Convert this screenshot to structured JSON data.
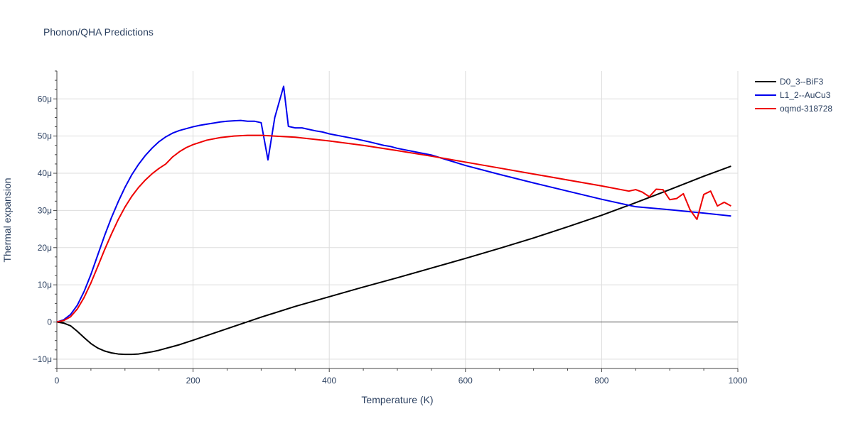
{
  "chart_data": {
    "type": "line",
    "title": "Phonon/QHA Predictions",
    "xlabel": "Temperature (K)",
    "ylabel": "Thermal expansion",
    "xlim": [
      0,
      1000
    ],
    "ylim": [
      -1.25e-05,
      6.75e-05
    ],
    "x_ticks": [
      0,
      200,
      400,
      600,
      800,
      1000
    ],
    "x_tick_labels": [
      "0",
      "200",
      "400",
      "600",
      "800",
      "1000"
    ],
    "y_ticks": [
      -1e-05,
      0,
      1e-05,
      2e-05,
      3e-05,
      4e-05,
      5e-05,
      6e-05
    ],
    "y_tick_labels": [
      "−10μ",
      "0",
      "10μ",
      "20μ",
      "30μ",
      "40μ",
      "50μ",
      "60μ"
    ],
    "grid": true,
    "legend_position": "top-right",
    "series": [
      {
        "name": "D0_3--BiF3",
        "color": "#000000",
        "x": [
          0,
          10,
          20,
          30,
          40,
          50,
          60,
          70,
          80,
          90,
          100,
          110,
          120,
          130,
          140,
          150,
          160,
          170,
          180,
          190,
          200,
          250,
          300,
          350,
          400,
          450,
          500,
          550,
          600,
          650,
          700,
          750,
          800,
          850,
          900,
          950,
          990
        ],
        "y": [
          0,
          -3e-07,
          -1e-06,
          -2.5e-06,
          -4.2e-06,
          -5.8e-06,
          -7e-06,
          -7.8e-06,
          -8.3e-06,
          -8.6e-06,
          -8.7e-06,
          -8.7e-06,
          -8.6e-06,
          -8.3e-06,
          -8e-06,
          -7.6e-06,
          -7.1e-06,
          -6.6e-06,
          -6.1e-06,
          -5.5e-06,
          -4.9e-06,
          -1.8e-06,
          1.3e-06,
          4.2e-06,
          6.8e-06,
          9.4e-06,
          1.19e-05,
          1.45e-05,
          1.71e-05,
          1.98e-05,
          2.26e-05,
          2.56e-05,
          2.87e-05,
          3.21e-05,
          3.56e-05,
          3.92e-05,
          4.19e-05
        ]
      },
      {
        "name": "L1_2--AuCu3",
        "color": "#0000ee",
        "x": [
          0,
          10,
          20,
          30,
          40,
          50,
          60,
          70,
          80,
          90,
          100,
          110,
          120,
          130,
          140,
          150,
          160,
          170,
          180,
          190,
          200,
          210,
          220,
          230,
          240,
          250,
          260,
          270,
          280,
          290,
          300,
          310,
          320,
          333,
          340,
          350,
          360,
          370,
          380,
          390,
          400,
          420,
          440,
          460,
          480,
          490,
          500,
          550,
          600,
          650,
          700,
          750,
          800,
          850,
          900,
          950,
          990
        ],
        "y": [
          0,
          6e-07,
          2e-06,
          4.5e-06,
          8.2e-06,
          1.28e-05,
          1.8e-05,
          2.32e-05,
          2.8e-05,
          3.23e-05,
          3.62e-05,
          3.96e-05,
          4.24e-05,
          4.48e-05,
          4.68e-05,
          4.85e-05,
          4.98e-05,
          5.08e-05,
          5.15e-05,
          5.2e-05,
          5.25e-05,
          5.29e-05,
          5.32e-05,
          5.35e-05,
          5.38e-05,
          5.4e-05,
          5.41e-05,
          5.42e-05,
          5.4e-05,
          5.4e-05,
          5.36e-05,
          4.36e-05,
          5.5e-05,
          6.34e-05,
          5.26e-05,
          5.22e-05,
          5.22e-05,
          5.18e-05,
          5.14e-05,
          5.11e-05,
          5.06e-05,
          4.99e-05,
          4.92e-05,
          4.84e-05,
          4.75e-05,
          4.72e-05,
          4.67e-05,
          4.49e-05,
          4.21e-05,
          3.97e-05,
          3.74e-05,
          3.52e-05,
          3.3e-05,
          3.1e-05,
          3.02e-05,
          2.93e-05,
          2.85e-05
        ]
      },
      {
        "name": "oqmd-318728",
        "color": "#ee0000",
        "x": [
          0,
          10,
          20,
          30,
          40,
          50,
          60,
          70,
          80,
          90,
          100,
          110,
          120,
          130,
          140,
          150,
          160,
          170,
          180,
          190,
          200,
          220,
          240,
          260,
          280,
          300,
          350,
          400,
          450,
          500,
          550,
          600,
          650,
          700,
          750,
          800,
          840,
          850,
          860,
          870,
          880,
          890,
          900,
          910,
          920,
          930,
          940,
          950,
          960,
          970,
          980,
          990
        ],
        "y": [
          0,
          4e-07,
          1.4e-06,
          3.5e-06,
          6.6e-06,
          1.05e-05,
          1.49e-05,
          1.94e-05,
          2.36e-05,
          2.75e-05,
          3.09e-05,
          3.38e-05,
          3.62e-05,
          3.82e-05,
          3.99e-05,
          4.13e-05,
          4.25e-05,
          4.44e-05,
          4.58e-05,
          4.69e-05,
          4.77e-05,
          4.89e-05,
          4.96e-05,
          5e-05,
          5.02e-05,
          5.02e-05,
          4.97e-05,
          4.87e-05,
          4.75e-05,
          4.61e-05,
          4.46e-05,
          4.3e-05,
          4.14e-05,
          3.98e-05,
          3.82e-05,
          3.66e-05,
          3.52e-05,
          3.56e-05,
          3.49e-05,
          3.37e-05,
          3.57e-05,
          3.56e-05,
          3.29e-05,
          3.32e-05,
          3.45e-05,
          3.01e-05,
          2.76e-05,
          3.43e-05,
          3.52e-05,
          3.12e-05,
          3.22e-05,
          3.12e-05
        ]
      }
    ]
  }
}
